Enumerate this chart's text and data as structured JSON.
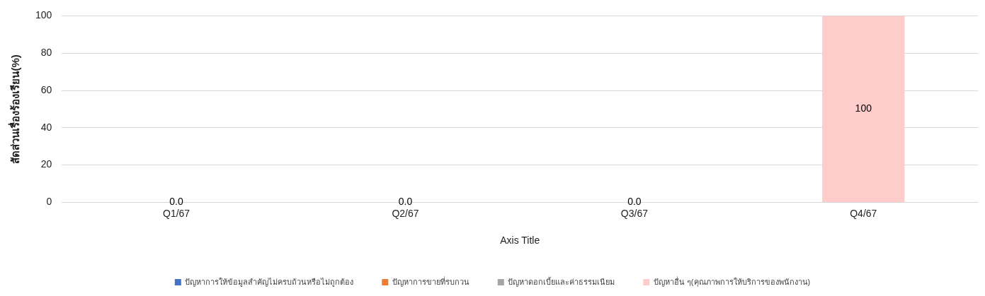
{
  "chart_data": {
    "type": "bar",
    "stacked": true,
    "xlabel": "Axis Title",
    "ylabel": "สัดส่วนเรื่องร้องเรียน(%)",
    "categories": [
      "Q1/67",
      "Q2/67",
      "Q3/67",
      "Q4/67"
    ],
    "ylim": [
      0,
      100
    ],
    "yticks": [
      0,
      20,
      40,
      60,
      80,
      100
    ],
    "grid": "y",
    "legend": "bottom",
    "series": [
      {
        "name": "ปัญหาการให้ข้อมูลสำคัญไม่ครบถ้วนหรือไม่ถูกต้อง",
        "color": "#4472c4",
        "values": [
          0,
          0,
          0,
          0
        ]
      },
      {
        "name": "ปัญหาการขายที่รบกวน",
        "color": "#ed7d31",
        "values": [
          0,
          0,
          0,
          0
        ]
      },
      {
        "name": "ปัญหาดอกเบี้ยและค่าธรรมเนียม",
        "color": "#a5a5a5",
        "values": [
          0,
          0,
          0,
          0
        ]
      },
      {
        "name": "ปัญหาอื่น ๆ(คุณภาพการให้บริการของพนักงาน)",
        "color": "#ffcccc",
        "values": [
          0,
          0,
          0,
          100
        ],
        "value_labels": [
          "0.0",
          "0.0",
          "0.0",
          "100"
        ]
      }
    ]
  }
}
